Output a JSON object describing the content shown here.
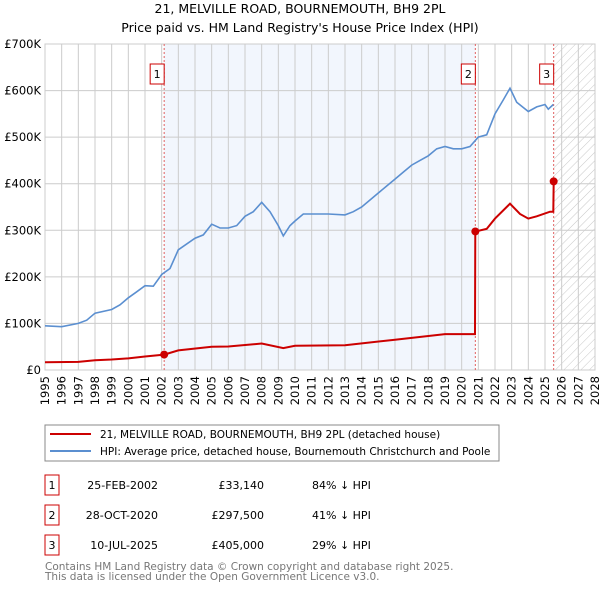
{
  "chart_data": {
    "type": "line",
    "title": "21, MELVILLE ROAD, BOURNEMOUTH, BH9 2PL",
    "subtitle": "Price paid vs. HM Land Registry's House Price Index (HPI)",
    "xlim": [
      1995,
      2028
    ],
    "ylim": [
      0,
      700000
    ],
    "x_ticks": [
      "1995",
      "1996",
      "1997",
      "1998",
      "1999",
      "2000",
      "2001",
      "2002",
      "2003",
      "2004",
      "2005",
      "2006",
      "2007",
      "2008",
      "2009",
      "2010",
      "2011",
      "2012",
      "2013",
      "2014",
      "2015",
      "2016",
      "2017",
      "2018",
      "2019",
      "2020",
      "2021",
      "2022",
      "2023",
      "2024",
      "2025",
      "2026",
      "2027",
      "2028"
    ],
    "y_ticks": [
      {
        "v": 0,
        "label": "£0"
      },
      {
        "v": 100000,
        "label": "£100K"
      },
      {
        "v": 200000,
        "label": "£200K"
      },
      {
        "v": 300000,
        "label": "£300K"
      },
      {
        "v": 400000,
        "label": "£400K"
      },
      {
        "v": 500000,
        "label": "£500K"
      },
      {
        "v": 600000,
        "label": "£600K"
      },
      {
        "v": 700000,
        "label": "£700K"
      }
    ],
    "grid": true,
    "shaded_region": [
      2002.15,
      2020.82
    ],
    "forecast_hatch_from": 2025.52,
    "series": [
      {
        "name": "21, MELVILLE ROAD, BOURNEMOUTH, BH9 2PL (detached house)",
        "color": "#cc0000",
        "x": [
          1995,
          1997,
          1998,
          1999,
          2000,
          2001,
          2002.15,
          2003,
          2005,
          2006,
          2008,
          2009.3,
          2010,
          2013,
          2016,
          2019,
          2020.8,
          2020.82,
          2021.5,
          2022,
          2022.9,
          2023.5,
          2024,
          2024.5,
          2025.3,
          2025.5,
          2025.52
        ],
        "y": [
          16500,
          17500,
          21000,
          22500,
          25000,
          29000,
          33140,
          42000,
          50000,
          50500,
          57000,
          47000,
          52000,
          53000,
          65000,
          77000,
          77000,
          297500,
          303000,
          325000,
          357000,
          335000,
          325000,
          330000,
          340000,
          340000,
          405000
        ]
      },
      {
        "name": "HPI: Average price, detached house, Bournemouth Christchurch and Poole",
        "color": "#5b8fd0",
        "x": [
          1995,
          1996,
          1997,
          1997.5,
          1998,
          1999,
          1999.5,
          2000,
          2000.5,
          2001,
          2001.5,
          2002,
          2002.5,
          2003,
          2004,
          2004.5,
          2005,
          2005.5,
          2006,
          2006.5,
          2007,
          2007.5,
          2008,
          2008.5,
          2009,
          2009.3,
          2009.7,
          2010,
          2010.5,
          2011,
          2012,
          2013,
          2013.5,
          2014,
          2015,
          2015.5,
          2016,
          2016.5,
          2017,
          2017.5,
          2018,
          2018.5,
          2019,
          2019.5,
          2020,
          2020.5,
          2021,
          2021.5,
          2022,
          2022.5,
          2022.9,
          2023.3,
          2024,
          2024.5,
          2025,
          2025.2,
          2025.5
        ],
        "y": [
          95000,
          93000,
          100000,
          107000,
          122000,
          130000,
          140000,
          155000,
          168000,
          181000,
          180000,
          205000,
          218000,
          258000,
          283000,
          290000,
          313000,
          305000,
          305000,
          310000,
          330000,
          340000,
          360000,
          340000,
          310000,
          288000,
          310000,
          320000,
          335000,
          335000,
          335000,
          333000,
          340000,
          350000,
          380000,
          395000,
          410000,
          425000,
          440000,
          450000,
          460000,
          475000,
          480000,
          475000,
          475000,
          480000,
          500000,
          505000,
          550000,
          580000,
          605000,
          575000,
          555000,
          565000,
          570000,
          560000,
          570000
        ]
      }
    ],
    "markers": [
      {
        "label": "1",
        "x": 2002.15,
        "y": 33140
      },
      {
        "label": "2",
        "x": 2020.82,
        "y": 297500
      },
      {
        "label": "3",
        "x": 2025.52,
        "y": 405000
      }
    ],
    "legend_placement": "bottom"
  },
  "transactions": [
    {
      "num": "1",
      "date": "25-FEB-2002",
      "price": "£33,140",
      "hpi": "84% ↓ HPI"
    },
    {
      "num": "2",
      "date": "28-OCT-2020",
      "price": "£297,500",
      "hpi": "41% ↓ HPI"
    },
    {
      "num": "3",
      "date": "10-JUL-2025",
      "price": "£405,000",
      "hpi": "29% ↓ HPI"
    }
  ],
  "footer": {
    "line1": "Contains HM Land Registry data © Crown copyright and database right 2025.",
    "line2": "This data is licensed under the Open Government Licence v3.0."
  }
}
